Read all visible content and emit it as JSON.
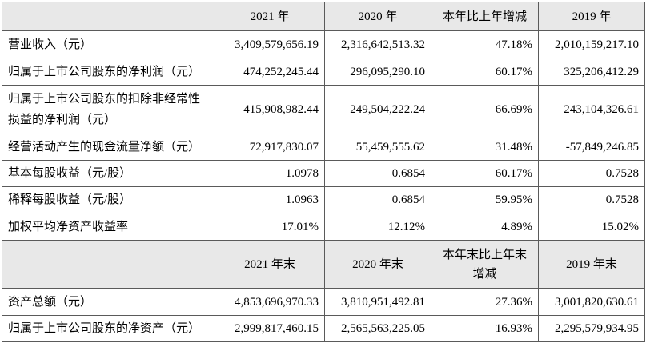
{
  "colors": {
    "header_bg": "#e8e8e8",
    "border": "#5a5a5a"
  },
  "table": {
    "columns": {
      "y2021": "2021 年",
      "y2020": "2020 年",
      "change": "本年比上年增减",
      "y2019": "2019 年"
    },
    "rows": [
      {
        "label": "营业收入（元）",
        "v2021": "3,409,579,656.19",
        "v2020": "2,316,642,513.32",
        "change": "47.18%",
        "v2019": "2,010,159,217.10"
      },
      {
        "label": "归属于上市公司股东的净利润（元）",
        "v2021": "474,252,245.44",
        "v2020": "296,095,290.10",
        "change": "60.17%",
        "v2019": "325,206,412.29"
      },
      {
        "label_lines": [
          "归属于上市公司股东的扣除非经常性",
          "损益的净利润（元）"
        ],
        "v2021": "415,908,982.44",
        "v2020": "249,504,222.24",
        "change": "66.69%",
        "v2019": "243,104,326.61"
      },
      {
        "label": "经营活动产生的现金流量净额（元）",
        "v2021": "72,917,830.07",
        "v2020": "55,459,555.62",
        "change": "31.48%",
        "v2019": "-57,849,246.85"
      },
      {
        "label": "基本每股收益（元/股）",
        "v2021": "1.0978",
        "v2020": "0.6854",
        "change": "60.17%",
        "v2019": "0.7528"
      },
      {
        "label": "稀释每股收益（元/股）",
        "v2021": "1.0963",
        "v2020": "0.6854",
        "change": "59.95%",
        "v2019": "0.7528"
      },
      {
        "label": "加权平均净资产收益率",
        "v2021": "17.01%",
        "v2020": "12.12%",
        "change": "4.89%",
        "v2019": "15.02%"
      }
    ],
    "columns_year_end": {
      "y2021": "2021 年末",
      "y2020": "2020 年末",
      "change_lines": [
        "本年末比上年末",
        "增减"
      ],
      "y2019": "2019 年末"
    },
    "rows_year_end": [
      {
        "label": "资产总额（元）",
        "v2021": "4,853,696,970.33",
        "v2020": "3,810,951,492.81",
        "change": "27.36%",
        "v2019": "3,001,820,630.61"
      },
      {
        "label": "归属于上市公司股东的净资产（元）",
        "v2021": "2,999,817,460.15",
        "v2020": "2,565,563,225.05",
        "change": "16.93%",
        "v2019": "2,295,579,934.95"
      }
    ]
  }
}
